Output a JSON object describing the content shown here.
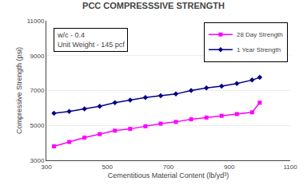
{
  "chart_data": {
    "type": "line",
    "title": "PCC COMPRESSSIVE STRENGTH",
    "xlabel": "Cementitious Material Content (lb/yd³)",
    "ylabel": "Compressive Strength (psi)",
    "x": [
      325,
      375,
      425,
      475,
      525,
      575,
      625,
      675,
      725,
      775,
      825,
      875,
      925,
      975,
      1000
    ],
    "series": [
      {
        "name": "28 Day Strength",
        "color": "#FF00FF",
        "marker": "square",
        "values": [
          3800,
          4050,
          4300,
          4500,
          4700,
          4800,
          4950,
          5100,
          5200,
          5350,
          5450,
          5550,
          5650,
          5750,
          6300
        ]
      },
      {
        "name": "1 Year Strength",
        "color": "#00008B",
        "marker": "diamond",
        "values": [
          5700,
          5800,
          5950,
          6100,
          6300,
          6450,
          6600,
          6700,
          6800,
          7000,
          7150,
          7250,
          7400,
          7600,
          7750
        ]
      }
    ],
    "xlim": [
      300,
      1100
    ],
    "ylim": [
      3000,
      11000
    ],
    "xticks": [
      300,
      500,
      700,
      900,
      1100
    ],
    "yticks": [
      3000,
      5000,
      7000,
      9000,
      11000
    ],
    "grid": "y",
    "legend": "upper right",
    "annotations": [
      "w/c - 0.4\nUnit Weight - 145 pcf"
    ]
  }
}
